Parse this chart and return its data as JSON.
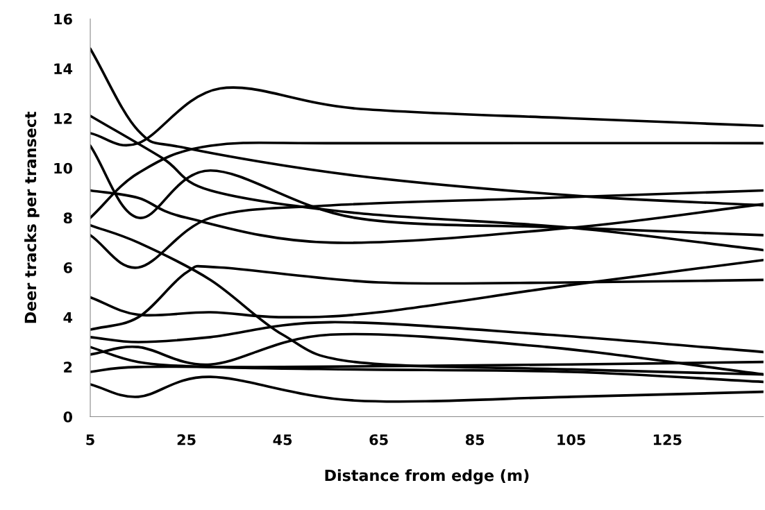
{
  "chart_data": {
    "type": "line",
    "xlabel": "Distance from edge (m)",
    "ylabel": "Deer tracks per transect",
    "xlim": [
      5,
      145
    ],
    "xticks": [
      5,
      25,
      45,
      65,
      85,
      105,
      125
    ],
    "ylim": [
      0,
      16
    ],
    "yticks": [
      0,
      2,
      4,
      6,
      8,
      10,
      12,
      14,
      16
    ],
    "grid": false,
    "marker": "none",
    "line_style": "solid",
    "series": [
      {
        "color": "#000000",
        "x": [
          5,
          15,
          25,
          60,
          105,
          145
        ],
        "values": [
          14.8,
          11.5,
          10.8,
          9.7,
          8.9,
          8.5
        ]
      },
      {
        "color": "#000000",
        "x": [
          5,
          20,
          30,
          60,
          105,
          145
        ],
        "values": [
          12.1,
          10.4,
          9.1,
          8.2,
          7.6,
          6.7
        ]
      },
      {
        "color": "#000000",
        "x": [
          5,
          15,
          32,
          60,
          105,
          145
        ],
        "values": [
          11.4,
          11.0,
          13.2,
          12.4,
          12.0,
          11.7
        ]
      },
      {
        "color": "#000000",
        "x": [
          5,
          15,
          30,
          60,
          105,
          145
        ],
        "values": [
          10.9,
          8.0,
          9.9,
          8.0,
          7.6,
          7.3
        ]
      },
      {
        "color": "#000000",
        "x": [
          5,
          15,
          25,
          55,
          105,
          145
        ],
        "values": [
          9.1,
          8.8,
          8.0,
          7.0,
          7.6,
          8.55
        ]
      },
      {
        "color": "#000000",
        "x": [
          5,
          15,
          30,
          60,
          145
        ],
        "values": [
          8.0,
          9.8,
          10.9,
          11.0,
          11.0
        ]
      },
      {
        "color": "#000000",
        "x": [
          5,
          15,
          30,
          45,
          60,
          105,
          145
        ],
        "values": [
          7.7,
          7.0,
          5.5,
          3.3,
          2.2,
          1.9,
          1.7
        ]
      },
      {
        "color": "#000000",
        "x": [
          5,
          15,
          30,
          55,
          100,
          145
        ],
        "values": [
          7.3,
          6.0,
          8.0,
          8.5,
          8.8,
          9.1
        ]
      },
      {
        "color": "#000000",
        "x": [
          5,
          15,
          30,
          45,
          65,
          105,
          145
        ],
        "values": [
          4.8,
          4.1,
          4.2,
          4.0,
          4.2,
          5.3,
          6.3
        ]
      },
      {
        "color": "#000000",
        "x": [
          5,
          15,
          25,
          32,
          65,
          105,
          145
        ],
        "values": [
          3.5,
          4.0,
          5.8,
          6.0,
          5.4,
          5.4,
          5.5
        ]
      },
      {
        "color": "#000000",
        "x": [
          5,
          15,
          30,
          55,
          100,
          145
        ],
        "values": [
          3.2,
          3.0,
          3.2,
          3.8,
          3.3,
          2.6
        ]
      },
      {
        "color": "#000000",
        "x": [
          5,
          15,
          30,
          60,
          105,
          145
        ],
        "values": [
          2.8,
          2.2,
          2.0,
          1.9,
          1.8,
          1.4
        ]
      },
      {
        "color": "#000000",
        "x": [
          5,
          15,
          30,
          55,
          100,
          145
        ],
        "values": [
          2.5,
          2.8,
          2.1,
          3.3,
          2.8,
          1.7
        ]
      },
      {
        "color": "#000000",
        "x": [
          5,
          15,
          45,
          105,
          145
        ],
        "values": [
          1.8,
          2.0,
          2.0,
          2.1,
          2.2
        ]
      },
      {
        "color": "#000000",
        "x": [
          5,
          15,
          30,
          60,
          105,
          145
        ],
        "values": [
          1.3,
          0.8,
          1.6,
          0.65,
          0.8,
          1.0
        ]
      }
    ]
  }
}
